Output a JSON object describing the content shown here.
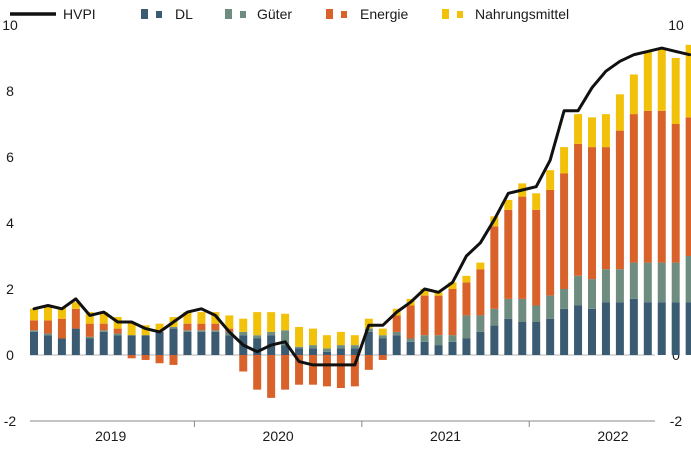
{
  "chart_data": {
    "type": "bar",
    "subtype": "stacked-bar-with-line",
    "title": "",
    "xlabel": "",
    "ylabel": "",
    "ylim": [
      -2,
      10
    ],
    "yticks": [
      -2,
      0,
      2,
      4,
      6,
      8,
      10
    ],
    "year_labels": [
      "2019",
      "2020",
      "2021",
      "2022"
    ],
    "grid": false,
    "legend_position": "top",
    "months": [
      "2019-01",
      "2019-02",
      "2019-03",
      "2019-04",
      "2019-05",
      "2019-06",
      "2019-07",
      "2019-08",
      "2019-09",
      "2019-10",
      "2019-11",
      "2019-12",
      "2020-01",
      "2020-02",
      "2020-03",
      "2020-04",
      "2020-05",
      "2020-06",
      "2020-07",
      "2020-08",
      "2020-09",
      "2020-10",
      "2020-11",
      "2020-12",
      "2021-01",
      "2021-02",
      "2021-03",
      "2021-04",
      "2021-05",
      "2021-06",
      "2021-07",
      "2021-08",
      "2021-09",
      "2021-10",
      "2021-11",
      "2021-12",
      "2022-01",
      "2022-02",
      "2022-03",
      "2022-04",
      "2022-05",
      "2022-06",
      "2022-07",
      "2022-08",
      "2022-09",
      "2022-10",
      "2022-11",
      "2022-12"
    ],
    "series": [
      {
        "name": "DL",
        "kind": "bar",
        "color": "#3b5b72",
        "values": [
          0.7,
          0.6,
          0.5,
          0.8,
          0.5,
          0.7,
          0.6,
          0.6,
          0.6,
          0.7,
          0.8,
          0.7,
          0.7,
          0.7,
          0.6,
          0.6,
          0.5,
          0.6,
          0.3,
          0.2,
          0.2,
          0.1,
          0.2,
          0.2,
          0.7,
          0.5,
          0.6,
          0.4,
          0.4,
          0.3,
          0.4,
          0.5,
          0.7,
          0.9,
          1.1,
          1.0,
          1.0,
          1.1,
          1.4,
          1.5,
          1.4,
          1.6,
          1.6,
          1.7,
          1.6,
          1.6,
          1.6,
          1.6
        ]
      },
      {
        "name": "Güter",
        "kind": "bar",
        "color": "#6e8d80",
        "values": [
          0.05,
          0.05,
          0.0,
          0.0,
          0.05,
          0.05,
          0.05,
          0.0,
          0.0,
          0.0,
          0.05,
          0.05,
          0.05,
          0.05,
          0.1,
          0.1,
          0.1,
          0.1,
          0.45,
          0.05,
          0.1,
          0.1,
          0.1,
          0.1,
          0.1,
          0.1,
          0.1,
          0.1,
          0.2,
          0.3,
          0.2,
          0.7,
          0.5,
          0.5,
          0.6,
          0.7,
          0.5,
          0.7,
          0.6,
          0.9,
          0.9,
          1.0,
          1.0,
          1.1,
          1.2,
          1.2,
          1.2,
          1.4
        ]
      },
      {
        "name": "Energie",
        "kind": "bar",
        "color": "#d9622b",
        "values": [
          0.3,
          0.4,
          0.6,
          0.6,
          0.4,
          0.2,
          0.15,
          -0.1,
          -0.15,
          -0.25,
          -0.3,
          0.2,
          0.2,
          0.2,
          0.1,
          -0.5,
          -1.05,
          -1.3,
          -1.05,
          -0.9,
          -0.9,
          -0.95,
          -1.0,
          -0.95,
          -0.45,
          -0.15,
          0.5,
          1.0,
          1.2,
          1.2,
          1.4,
          1.0,
          1.4,
          2.5,
          2.7,
          3.1,
          2.9,
          3.2,
          3.5,
          4.0,
          4.0,
          3.7,
          4.2,
          4.5,
          4.6,
          4.6,
          4.2,
          4.2
        ]
      },
      {
        "name": "Nahrungsmittel",
        "kind": "bar",
        "color": "#f2c20a",
        "values": [
          0.35,
          0.45,
          0.35,
          0.2,
          0.35,
          0.35,
          0.35,
          0.4,
          0.3,
          0.25,
          0.3,
          0.35,
          0.35,
          0.35,
          0.4,
          0.4,
          0.7,
          0.6,
          0.5,
          0.6,
          0.5,
          0.4,
          0.4,
          0.3,
          0.3,
          0.2,
          0.2,
          0.2,
          0.2,
          0.1,
          0.2,
          0.2,
          0.2,
          0.3,
          0.3,
          0.4,
          0.5,
          0.6,
          0.8,
          0.9,
          0.9,
          1.0,
          1.1,
          1.2,
          1.8,
          1.9,
          2.0,
          2.2
        ]
      },
      {
        "name": "HVPI",
        "kind": "line",
        "color": "#111111",
        "values": [
          1.4,
          1.5,
          1.4,
          1.7,
          1.2,
          1.3,
          1.0,
          1.0,
          0.8,
          0.7,
          1.0,
          1.3,
          1.4,
          1.2,
          0.7,
          0.3,
          0.1,
          0.3,
          0.4,
          -0.2,
          -0.3,
          -0.3,
          -0.3,
          -0.3,
          0.9,
          0.9,
          1.3,
          1.6,
          2.0,
          1.9,
          2.2,
          3.0,
          3.4,
          4.1,
          4.9,
          5.0,
          5.1,
          5.9,
          7.4,
          7.4,
          8.1,
          8.6,
          8.9,
          9.1,
          9.2,
          9.3,
          9.2,
          9.1
        ]
      }
    ]
  },
  "legend": [
    {
      "label": "HVPI",
      "symbol": "line",
      "color": "#111111"
    },
    {
      "label": "DL",
      "symbol": "square",
      "color": "#3b5b72"
    },
    {
      "label": "Güter",
      "symbol": "square",
      "color": "#6e8d80"
    },
    {
      "label": "Energie",
      "symbol": "square",
      "color": "#d9622b"
    },
    {
      "label": "Nahrungsmittel",
      "symbol": "square",
      "color": "#f2c20a"
    }
  ]
}
